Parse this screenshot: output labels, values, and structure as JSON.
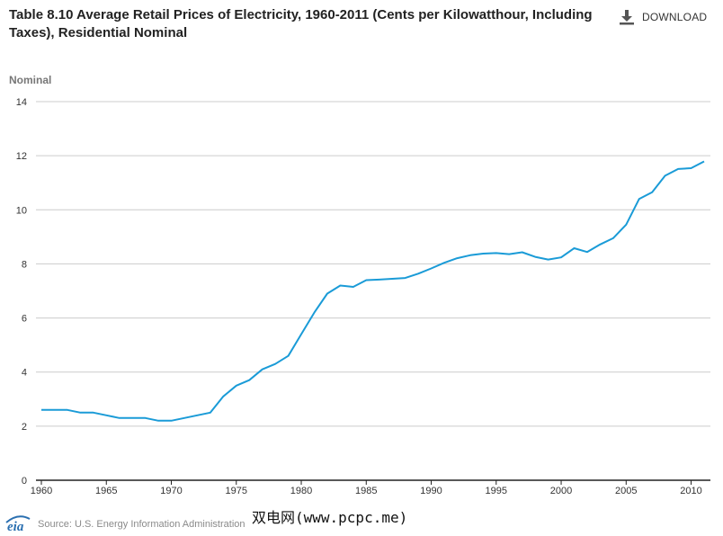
{
  "header": {
    "title": "Table 8.10 Average Retail Prices of Electricity, 1960-2011 (Cents per Kilowatthour, Including Taxes), Residential Nominal",
    "download_label": "DOWNLOAD",
    "download_icon": "download-icon"
  },
  "footer": {
    "logo_text": "eia",
    "source": "Source: U.S. Energy Information Administration",
    "watermark": "双电网(www.pcpc.me)"
  },
  "colors": {
    "line": "#1a9bd7",
    "grid": "#cccccc",
    "axis": "#222222",
    "ylabel": "#777777"
  },
  "chart_data": {
    "type": "line",
    "title": "Table 8.10 Average Retail Prices of Electricity, 1960-2011 (Cents per Kilowatthour, Including Taxes), Residential Nominal",
    "xlabel": "",
    "ylabel": "Nominal",
    "xlim": [
      1960,
      2011
    ],
    "ylim": [
      0,
      14
    ],
    "xticks": [
      1960,
      1965,
      1970,
      1975,
      1980,
      1985,
      1990,
      1995,
      2000,
      2005,
      2010
    ],
    "yticks": [
      0,
      2,
      4,
      6,
      8,
      10,
      12,
      14
    ],
    "grid": true,
    "series": [
      {
        "name": "Residential Nominal",
        "x": [
          1960,
          1961,
          1962,
          1963,
          1964,
          1965,
          1966,
          1967,
          1968,
          1969,
          1970,
          1971,
          1972,
          1973,
          1974,
          1975,
          1976,
          1977,
          1978,
          1979,
          1980,
          1981,
          1982,
          1983,
          1984,
          1985,
          1986,
          1987,
          1988,
          1989,
          1990,
          1991,
          1992,
          1993,
          1994,
          1995,
          1996,
          1997,
          1998,
          1999,
          2000,
          2001,
          2002,
          2003,
          2004,
          2005,
          2006,
          2007,
          2008,
          2009,
          2010,
          2011
        ],
        "values": [
          2.6,
          2.6,
          2.6,
          2.5,
          2.5,
          2.4,
          2.3,
          2.3,
          2.3,
          2.2,
          2.2,
          2.3,
          2.4,
          2.5,
          3.1,
          3.5,
          3.7,
          4.1,
          4.3,
          4.6,
          5.4,
          6.2,
          6.9,
          7.2,
          7.15,
          7.4,
          7.42,
          7.45,
          7.48,
          7.64,
          7.83,
          8.04,
          8.21,
          8.32,
          8.38,
          8.4,
          8.36,
          8.43,
          8.26,
          8.16,
          8.24,
          8.58,
          8.44,
          8.72,
          8.95,
          9.45,
          10.4,
          10.65,
          11.26,
          11.51,
          11.54,
          11.79
        ]
      }
    ]
  }
}
